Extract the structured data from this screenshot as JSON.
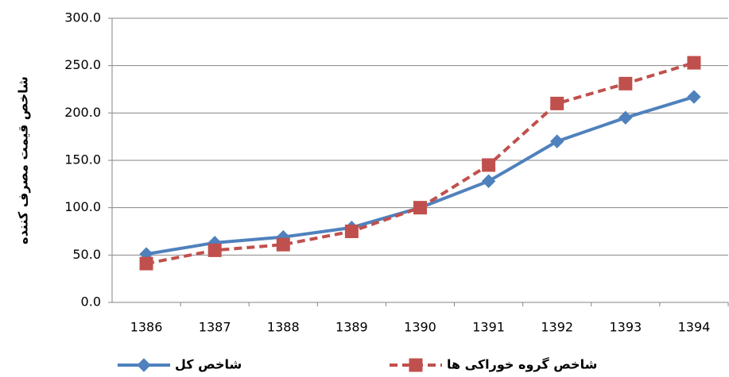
{
  "chart_data": {
    "type": "line",
    "y_label": "شاخص قیمت مصرف کننده",
    "categories": [
      "1386",
      "1387",
      "1388",
      "1389",
      "1390",
      "1391",
      "1392",
      "1393",
      "1394"
    ],
    "series": [
      {
        "name": "شاخص کل",
        "color": "#4f81bd",
        "marker": "diamond",
        "dashed": false,
        "values": [
          51,
          63,
          69,
          79,
          100,
          128,
          170,
          195,
          217
        ]
      },
      {
        "name": "شاخص گروه خوراکی ها",
        "color": "#c0504d",
        "marker": "square",
        "dashed": true,
        "values": [
          41,
          55,
          61,
          75,
          100,
          145,
          210,
          231,
          253
        ]
      }
    ],
    "ylim": [
      0,
      300
    ],
    "yticks": [
      {
        "value": 0,
        "label": "0.0"
      },
      {
        "value": 50,
        "label": "50.0"
      },
      {
        "value": 100,
        "label": "100.0"
      },
      {
        "value": 150,
        "label": "150.0"
      },
      {
        "value": 200,
        "label": "200.0"
      },
      {
        "value": 250,
        "label": "250.0"
      },
      {
        "value": 300,
        "label": "300.0"
      }
    ],
    "grid": true
  }
}
